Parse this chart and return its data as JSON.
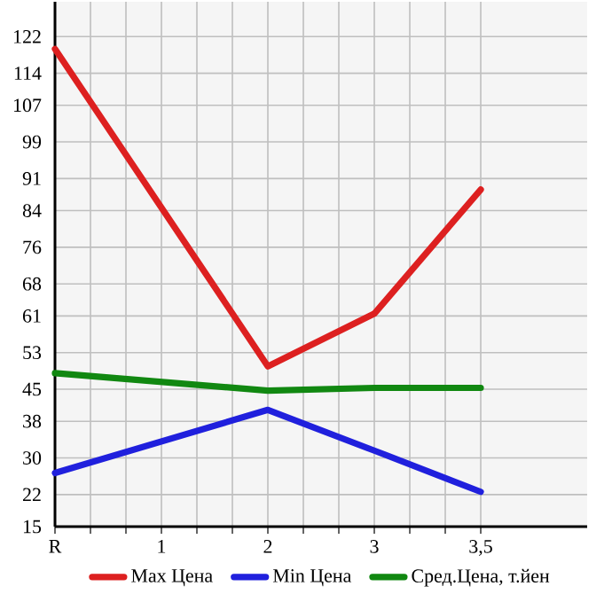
{
  "chart_data": {
    "type": "line",
    "categories": [
      "R",
      "1",
      "2",
      "3",
      "3,5"
    ],
    "series": [
      {
        "name": "Max Цена",
        "color": "#dd2020",
        "values": [
          119.3,
          null,
          50.0,
          61.5,
          88.6
        ]
      },
      {
        "name": "Min Цена",
        "color": "#2020dd",
        "values": [
          26.7,
          null,
          40.5,
          31.6,
          22.6
        ]
      },
      {
        "name": "Сред.Цена, т.йен",
        "color": "#118811",
        "values": [
          48.5,
          null,
          44.7,
          45.3,
          45.3
        ]
      }
    ],
    "ylim": [
      15,
      129.6
    ],
    "yticks": [
      15,
      22,
      30,
      38,
      45,
      53,
      61,
      68,
      76,
      84,
      91,
      99,
      107,
      114,
      122
    ],
    "grid": true,
    "legend": "bottom",
    "line_style": "solid"
  }
}
